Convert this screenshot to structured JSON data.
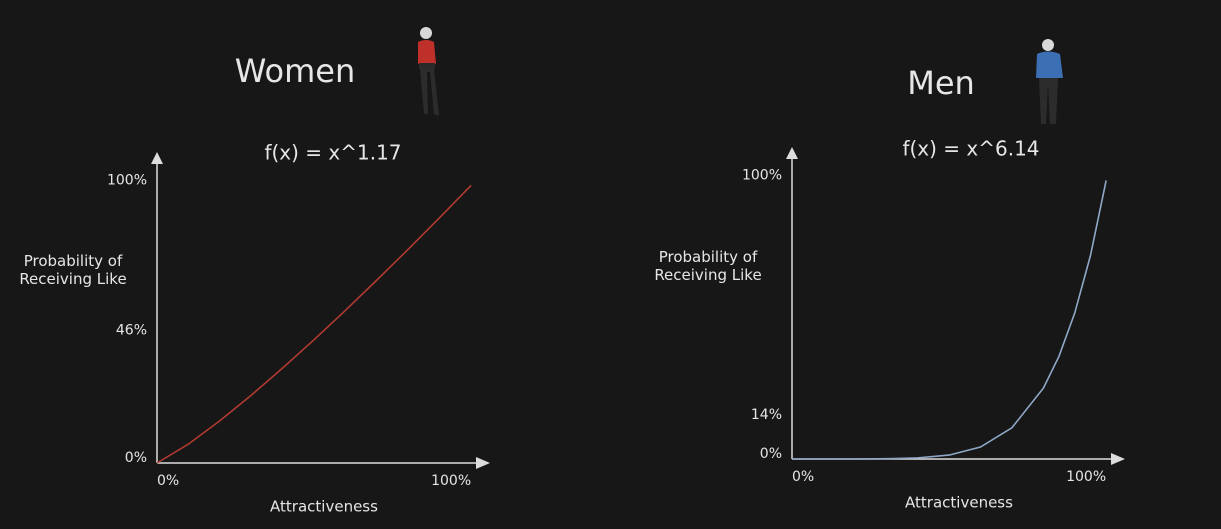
{
  "chart_data": [
    {
      "type": "line",
      "title": "Women",
      "annotation": "f(x) = x^1.17",
      "ylabel": "Probability of Receiving Like",
      "xlabel": "Attractiveness",
      "x": [
        0,
        10,
        20,
        30,
        40,
        50,
        60,
        70,
        80,
        90,
        100
      ],
      "series": [
        {
          "name": "Women",
          "color": "#b03a30",
          "values": [
            0,
            6.8,
            15.2,
            24.4,
            34.2,
            44.4,
            55.0,
            65.9,
            77.0,
            88.4,
            100
          ]
        }
      ],
      "xlim": [
        0,
        106
      ],
      "ylim": [
        0,
        112
      ],
      "xticks": [
        {
          "value": 0,
          "label": "0%"
        },
        {
          "value": 100,
          "label": "100%"
        }
      ],
      "yticks": [
        {
          "value": 0,
          "label": "0%"
        },
        {
          "value": 46,
          "label": "46%"
        },
        {
          "value": 100,
          "label": "100%"
        }
      ],
      "grid": false
    },
    {
      "type": "line",
      "title": "Men",
      "annotation": "f(x) = x^6.14",
      "ylabel": "Probability of Receiving Like",
      "xlabel": "Attractiveness",
      "x": [
        0,
        10,
        20,
        30,
        40,
        50,
        60,
        70,
        80,
        85,
        90,
        95,
        100
      ],
      "series": [
        {
          "name": "Men",
          "color": "#8fa8c8",
          "values": [
            0,
            0,
            0,
            0.1,
            0.4,
            1.4,
            4.3,
            11.2,
            25.4,
            36.9,
            52.4,
            73.0,
            100
          ]
        }
      ],
      "xlim": [
        0,
        106
      ],
      "ylim": [
        0,
        112
      ],
      "xticks": [
        {
          "value": 0,
          "label": "0%"
        },
        {
          "value": 100,
          "label": "100%"
        }
      ],
      "yticks": [
        {
          "value": 0,
          "label": "0%"
        },
        {
          "value": 14,
          "label": "14%"
        },
        {
          "value": 100,
          "label": "100%"
        }
      ],
      "grid": false
    }
  ]
}
